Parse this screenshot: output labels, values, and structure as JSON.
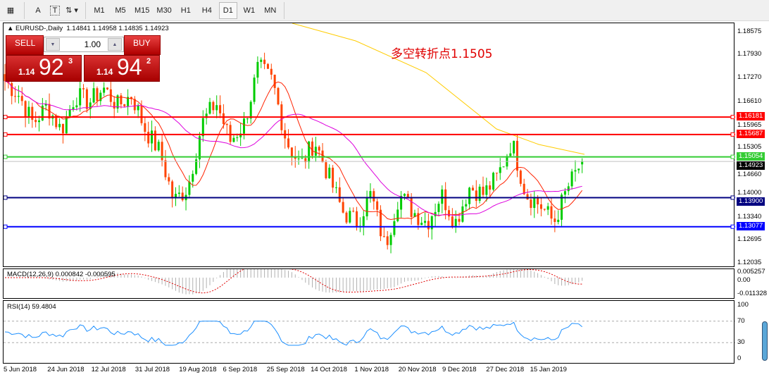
{
  "toolbar": {
    "items": [
      "A",
      "T",
      "M1",
      "M5",
      "M15",
      "M30",
      "H1",
      "H4",
      "D1",
      "W1",
      "MN"
    ],
    "selected": "D1"
  },
  "header": {
    "symbol": "EURUSD-,Daily",
    "ohlc": "1.14841 1.14958 1.14835 1.14923"
  },
  "trade": {
    "sell_label": "SELL",
    "buy_label": "BUY",
    "lot": "1.00",
    "sell_prefix": "1.14",
    "sell_big": "92",
    "sell_pip": "3",
    "buy_prefix": "1.14",
    "buy_big": "94",
    "buy_pip": "2"
  },
  "annotation": "多空转折点1.1505",
  "chart_data": {
    "type": "candlestick",
    "price_axis": [
      "1.18575",
      "1.17930",
      "1.17270",
      "1.16610",
      "1.15965",
      "1.15305",
      "1.14660",
      "1.14000",
      "1.13340",
      "1.12695",
      "1.12035"
    ],
    "ylim": [
      1.12035,
      1.18575
    ],
    "x_labels": [
      "5 Jun 2018",
      "24 Jun 2018",
      "12 Jul 2018",
      "31 Jul 2018",
      "19 Aug 2018",
      "6 Sep 2018",
      "25 Sep 2018",
      "14 Oct 2018",
      "1 Nov 2018",
      "20 Nov 2018",
      "9 Dec 2018",
      "27 Dec 2018",
      "15 Jan 2019"
    ],
    "close_waypoints": [
      1.172,
      1.168,
      1.16,
      1.165,
      1.158,
      1.168,
      1.166,
      1.17,
      1.165,
      1.168,
      1.158,
      1.152,
      1.138,
      1.142,
      1.16,
      1.166,
      1.155,
      1.16,
      1.176,
      1.172,
      1.155,
      1.148,
      1.155,
      1.145,
      1.135,
      1.132,
      1.14,
      1.125,
      1.14,
      1.135,
      1.132,
      1.14,
      1.132,
      1.142,
      1.14,
      1.145,
      1.155,
      1.14,
      1.137,
      1.132,
      1.142,
      1.1492
    ],
    "levels": [
      {
        "value": "1.16181",
        "color": "#ff0000"
      },
      {
        "value": "1.15687",
        "color": "#ff0000"
      },
      {
        "value": "1.15054",
        "color": "#33cc33"
      },
      {
        "value": "1.13900",
        "color": "#000080"
      },
      {
        "value": "1.13077",
        "color": "#0000ff"
      }
    ],
    "current_price": "1.14923",
    "colors": {
      "bull": "#00cc00",
      "bear": "#ff4400",
      "ma_fast": "#ff2200",
      "ma_mid": "#dd00dd",
      "ma_slow": "#ffcc00"
    },
    "macd": {
      "label": "MACD(12,26,9) 0.000842 -0.000595",
      "axis": [
        "0.005257",
        "0.00",
        "-0.011328"
      ]
    },
    "rsi": {
      "label": "RSI(14) 59.4804",
      "axis": [
        "100",
        "70",
        "30",
        "0"
      ],
      "levels": [
        70,
        30
      ],
      "last": 59.4804
    }
  }
}
